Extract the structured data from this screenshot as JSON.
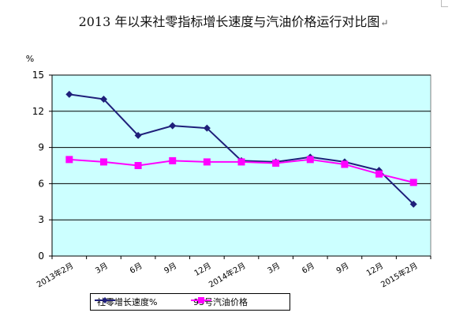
{
  "title": "2013 年以来社零指标增长速度与汽油价格运行对比图",
  "title_mark": "↵",
  "chart_data": {
    "type": "line",
    "ylabel": "%",
    "ylim": [
      0,
      15
    ],
    "yticks": [
      0,
      3,
      6,
      9,
      12,
      15
    ],
    "categories": [
      "2013年2月",
      "3月",
      "6月",
      "9月",
      "12月",
      "2014年2月",
      "3月",
      "6月",
      "9月",
      "12月",
      "2015年2月"
    ],
    "series": [
      {
        "name": "社零增长速度%",
        "color": "#1f1f7a",
        "marker": "diamond",
        "values": [
          13.4,
          13.0,
          10.0,
          10.8,
          10.6,
          7.9,
          7.8,
          8.2,
          7.8,
          7.1,
          4.3
        ]
      },
      {
        "name": "93号汽油价格",
        "color": "#ff00ff",
        "marker": "square",
        "values": [
          8.0,
          7.8,
          7.5,
          7.9,
          7.8,
          7.8,
          7.7,
          8.0,
          7.6,
          6.8,
          6.1
        ]
      }
    ],
    "plot_background": "#ccffff",
    "grid": {
      "y": true,
      "color": "#000000"
    },
    "legend": "bottom"
  }
}
